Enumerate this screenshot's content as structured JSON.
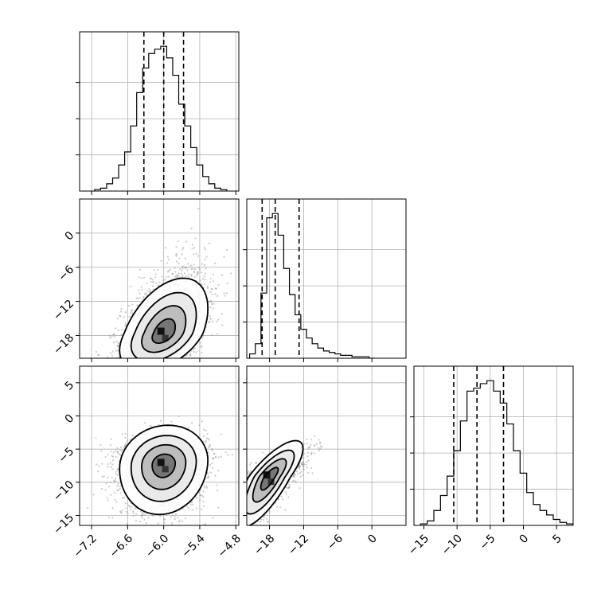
{
  "chart_data": {
    "type": "corner",
    "grid": true,
    "parameters": [
      {
        "index": 0,
        "range": [
          -7.4,
          -4.75
        ]
      },
      {
        "index": 1,
        "range": [
          -22,
          6
        ]
      },
      {
        "index": 2,
        "range": [
          -16.5,
          7.5
        ]
      }
    ],
    "panels": [
      {
        "id": "hist-0",
        "type": "histogram",
        "param": 0,
        "quantiles": [
          -6.33,
          -6.0,
          -5.67
        ],
        "bin_centers": [
          -7.1,
          -7.0,
          -6.9,
          -6.8,
          -6.7,
          -6.6,
          -6.5,
          -6.4,
          -6.3,
          -6.2,
          -6.1,
          -6.0,
          -5.9,
          -5.8,
          -5.7,
          -5.6,
          -5.5,
          -5.4,
          -5.3,
          -5.2,
          -5.1,
          -5.0
        ],
        "counts": [
          1,
          2,
          5,
          9,
          18,
          27,
          45,
          68,
          85,
          95,
          98,
          100,
          92,
          80,
          60,
          45,
          30,
          18,
          10,
          5,
          2,
          1
        ]
      },
      {
        "id": "hist-1",
        "type": "histogram",
        "param": 1,
        "quantiles": [
          -19.3,
          -17.0,
          -12.8
        ],
        "bin_centers": [
          -21,
          -20,
          -19,
          -18,
          -17,
          -16,
          -15,
          -14,
          -13,
          -12,
          -11,
          -10,
          -9,
          -8,
          -7,
          -6,
          -5,
          -4,
          -3,
          -2,
          -1,
          0
        ],
        "counts": [
          3,
          10,
          45,
          97,
          100,
          85,
          62,
          44,
          30,
          20,
          14,
          10,
          7,
          5,
          4,
          3,
          2,
          2,
          1,
          1,
          1,
          0
        ]
      },
      {
        "id": "hist-2",
        "type": "histogram",
        "param": 2,
        "quantiles": [
          -10.5,
          -7.0,
          -3.0
        ],
        "bin_centers": [
          -15,
          -14,
          -13,
          -12,
          -11,
          -10,
          -9,
          -8,
          -7,
          -6,
          -5,
          -4,
          -3,
          -2,
          -1,
          0,
          1,
          2,
          3,
          4,
          5,
          6,
          7
        ],
        "counts": [
          1,
          3,
          10,
          20,
          33,
          50,
          70,
          90,
          92,
          95,
          97,
          90,
          82,
          68,
          50,
          35,
          22,
          14,
          10,
          7,
          4,
          2,
          1
        ]
      },
      {
        "id": "scatter-1-0",
        "type": "density",
        "x_param": 0,
        "y_param": 1,
        "center": [
          -6.0,
          -17.6
        ],
        "sd": [
          0.35,
          3.2
        ],
        "rho": 0.45,
        "skew_y": 1.8
      },
      {
        "id": "scatter-2-0",
        "type": "density",
        "x_param": 0,
        "y_param": 2,
        "center": [
          -6.0,
          -7.3
        ],
        "sd": [
          0.35,
          3.6
        ],
        "rho": 0.1,
        "skew_y": 0.6
      },
      {
        "id": "scatter-2-1",
        "type": "density",
        "x_param": 1,
        "y_param": 2,
        "center": [
          -18.0,
          -9.2
        ],
        "sd": [
          2.8,
          3.6
        ],
        "rho": 0.78,
        "skew_y": 0.5
      }
    ],
    "tick_labels": {
      "x0": [
        "−7.2",
        "−6.6",
        "−6.0",
        "−5.4",
        "−4.8"
      ],
      "x1": [
        "−18",
        "−12",
        "−6",
        "0"
      ],
      "x2": [
        "−15",
        "−10",
        "−5",
        "0",
        "5"
      ],
      "y1": [
        "0",
        "−6",
        "−12",
        "−18"
      ],
      "y2": [
        "5",
        "0",
        "−5",
        "−10",
        "−15"
      ]
    }
  }
}
